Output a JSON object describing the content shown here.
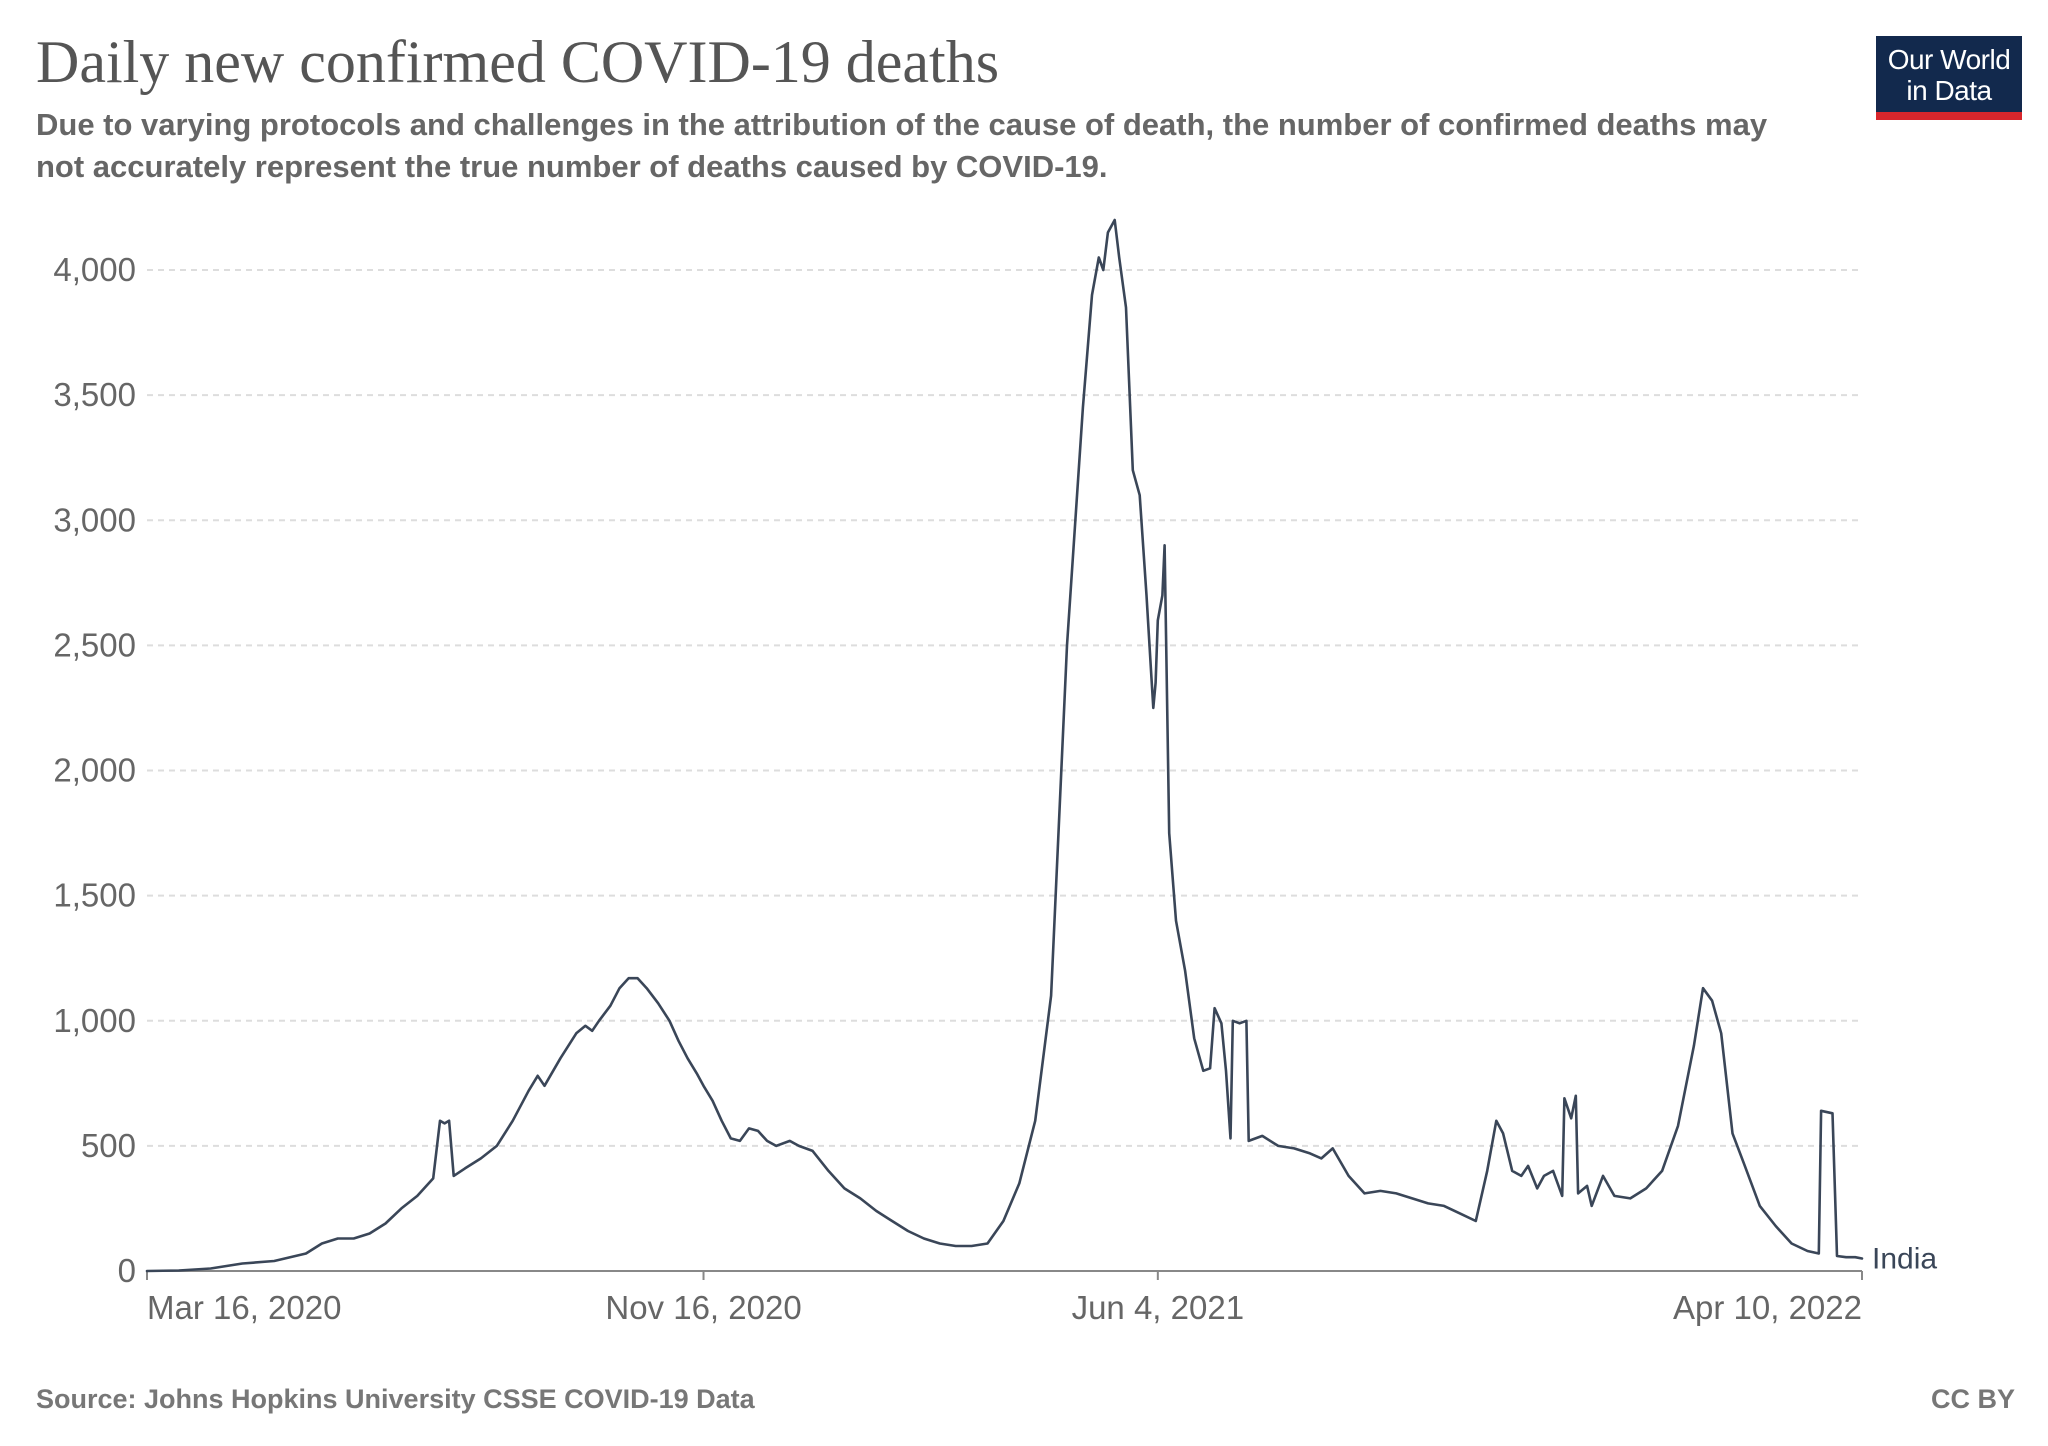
{
  "header": {
    "title": "Daily new confirmed COVID-19 deaths",
    "subtitle": "Due to varying protocols and challenges in the attribution of the cause of death, the number of confirmed deaths may not accurately represent the true number of deaths caused by COVID-19.",
    "logo_line1": "Our World",
    "logo_line2": "in Data"
  },
  "footer": {
    "source": "Source: Johns Hopkins University CSSE COVID-19 Data",
    "license": "CC BY"
  },
  "colors": {
    "line": "#3a4658",
    "grid": "#dddddd",
    "axis": "#888888",
    "tick_label": "#666666",
    "logo_bg": "#12294d",
    "logo_accent": "#d8262c"
  },
  "chart_data": {
    "type": "line",
    "title": "Daily new confirmed COVID-19 deaths",
    "xlabel": "",
    "ylabel": "",
    "x_type": "date",
    "xlim": [
      "2020-03-16",
      "2022-04-10"
    ],
    "ylim": [
      0,
      4000
    ],
    "y_ticks": [
      0,
      500,
      1000,
      1500,
      2000,
      2500,
      3000,
      3500,
      4000
    ],
    "y_tick_labels": [
      "0",
      "500",
      "1,000",
      "1,500",
      "2,000",
      "2,500",
      "3,000",
      "3,500",
      "4,000"
    ],
    "x_ticks": [
      "2020-03-16",
      "2020-11-16",
      "2021-06-04",
      "2022-04-10"
    ],
    "x_tick_labels": [
      "Mar 16, 2020",
      "Nov 16, 2020",
      "Jun 4, 2021",
      "Apr 10, 2022"
    ],
    "grid": true,
    "legend": "end-of-line label",
    "series": [
      {
        "name": "India",
        "color": "#3a4658",
        "points": [
          [
            "2020-03-16",
            0
          ],
          [
            "2020-03-30",
            2
          ],
          [
            "2020-04-13",
            10
          ],
          [
            "2020-04-27",
            30
          ],
          [
            "2020-05-11",
            40
          ],
          [
            "2020-05-25",
            70
          ],
          [
            "2020-06-01",
            110
          ],
          [
            "2020-06-08",
            130
          ],
          [
            "2020-06-15",
            130
          ],
          [
            "2020-06-22",
            150
          ],
          [
            "2020-06-29",
            190
          ],
          [
            "2020-07-06",
            250
          ],
          [
            "2020-07-13",
            300
          ],
          [
            "2020-07-20",
            370
          ],
          [
            "2020-07-23",
            600
          ],
          [
            "2020-07-25",
            590
          ],
          [
            "2020-07-27",
            600
          ],
          [
            "2020-07-29",
            380
          ],
          [
            "2020-08-03",
            410
          ],
          [
            "2020-08-10",
            450
          ],
          [
            "2020-08-17",
            500
          ],
          [
            "2020-08-24",
            600
          ],
          [
            "2020-08-31",
            720
          ],
          [
            "2020-09-04",
            780
          ],
          [
            "2020-09-07",
            740
          ],
          [
            "2020-09-14",
            850
          ],
          [
            "2020-09-21",
            950
          ],
          [
            "2020-09-25",
            980
          ],
          [
            "2020-09-28",
            960
          ],
          [
            "2020-10-01",
            1000
          ],
          [
            "2020-10-06",
            1060
          ],
          [
            "2020-10-10",
            1130
          ],
          [
            "2020-10-14",
            1170
          ],
          [
            "2020-10-18",
            1170
          ],
          [
            "2020-10-22",
            1130
          ],
          [
            "2020-10-27",
            1070
          ],
          [
            "2020-11-01",
            1000
          ],
          [
            "2020-11-05",
            920
          ],
          [
            "2020-11-09",
            850
          ],
          [
            "2020-11-13",
            790
          ],
          [
            "2020-11-16",
            740
          ],
          [
            "2020-11-20",
            680
          ],
          [
            "2020-11-24",
            600
          ],
          [
            "2020-11-28",
            530
          ],
          [
            "2020-12-02",
            520
          ],
          [
            "2020-12-06",
            570
          ],
          [
            "2020-12-10",
            560
          ],
          [
            "2020-12-14",
            520
          ],
          [
            "2020-12-18",
            500
          ],
          [
            "2020-12-24",
            520
          ],
          [
            "2020-12-28",
            500
          ],
          [
            "2021-01-03",
            480
          ],
          [
            "2021-01-10",
            400
          ],
          [
            "2021-01-17",
            330
          ],
          [
            "2021-01-24",
            290
          ],
          [
            "2021-01-31",
            240
          ],
          [
            "2021-02-07",
            200
          ],
          [
            "2021-02-14",
            160
          ],
          [
            "2021-02-21",
            130
          ],
          [
            "2021-02-28",
            110
          ],
          [
            "2021-03-07",
            100
          ],
          [
            "2021-03-14",
            100
          ],
          [
            "2021-03-21",
            110
          ],
          [
            "2021-03-28",
            200
          ],
          [
            "2021-04-04",
            350
          ],
          [
            "2021-04-11",
            600
          ],
          [
            "2021-04-18",
            1100
          ],
          [
            "2021-04-25",
            2500
          ],
          [
            "2021-05-02",
            3450
          ],
          [
            "2021-05-06",
            3900
          ],
          [
            "2021-05-09",
            4050
          ],
          [
            "2021-05-11",
            4000
          ],
          [
            "2021-05-13",
            4150
          ],
          [
            "2021-05-16",
            4200
          ],
          [
            "2021-05-18",
            4050
          ],
          [
            "2021-05-21",
            3850
          ],
          [
            "2021-05-24",
            3200
          ],
          [
            "2021-05-27",
            3100
          ],
          [
            "2021-05-30",
            2700
          ],
          [
            "2021-06-01",
            2400
          ],
          [
            "2021-06-02",
            2250
          ],
          [
            "2021-06-03",
            2350
          ],
          [
            "2021-06-04",
            2600
          ],
          [
            "2021-06-06",
            2700
          ],
          [
            "2021-06-07",
            2900
          ],
          [
            "2021-06-09",
            1750
          ],
          [
            "2021-06-12",
            1400
          ],
          [
            "2021-06-16",
            1200
          ],
          [
            "2021-06-20",
            930
          ],
          [
            "2021-06-24",
            800
          ],
          [
            "2021-06-27",
            810
          ],
          [
            "2021-06-29",
            1050
          ],
          [
            "2021-07-02",
            990
          ],
          [
            "2021-07-04",
            800
          ],
          [
            "2021-07-06",
            530
          ],
          [
            "2021-07-07",
            1000
          ],
          [
            "2021-07-10",
            990
          ],
          [
            "2021-07-13",
            1000
          ],
          [
            "2021-07-14",
            520
          ],
          [
            "2021-07-20",
            540
          ],
          [
            "2021-07-27",
            500
          ],
          [
            "2021-08-03",
            490
          ],
          [
            "2021-08-10",
            470
          ],
          [
            "2021-08-15",
            450
          ],
          [
            "2021-08-20",
            490
          ],
          [
            "2021-08-27",
            380
          ],
          [
            "2021-09-03",
            310
          ],
          [
            "2021-09-10",
            320
          ],
          [
            "2021-09-17",
            310
          ],
          [
            "2021-09-24",
            290
          ],
          [
            "2021-10-01",
            270
          ],
          [
            "2021-10-08",
            260
          ],
          [
            "2021-10-15",
            230
          ],
          [
            "2021-10-22",
            200
          ],
          [
            "2021-10-27",
            400
          ],
          [
            "2021-10-31",
            600
          ],
          [
            "2021-11-03",
            550
          ],
          [
            "2021-11-07",
            400
          ],
          [
            "2021-11-11",
            380
          ],
          [
            "2021-11-14",
            420
          ],
          [
            "2021-11-18",
            330
          ],
          [
            "2021-11-21",
            380
          ],
          [
            "2021-11-25",
            400
          ],
          [
            "2021-11-29",
            300
          ],
          [
            "2021-11-30",
            690
          ],
          [
            "2021-12-03",
            610
          ],
          [
            "2021-12-05",
            700
          ],
          [
            "2021-12-06",
            310
          ],
          [
            "2021-12-10",
            340
          ],
          [
            "2021-12-12",
            260
          ],
          [
            "2021-12-17",
            380
          ],
          [
            "2021-12-22",
            300
          ],
          [
            "2021-12-29",
            290
          ],
          [
            "2022-01-05",
            330
          ],
          [
            "2022-01-12",
            400
          ],
          [
            "2022-01-19",
            580
          ],
          [
            "2022-01-26",
            900
          ],
          [
            "2022-01-30",
            1130
          ],
          [
            "2022-02-03",
            1080
          ],
          [
            "2022-02-07",
            950
          ],
          [
            "2022-02-12",
            550
          ],
          [
            "2022-02-17",
            430
          ],
          [
            "2022-02-24",
            260
          ],
          [
            "2022-03-03",
            180
          ],
          [
            "2022-03-10",
            110
          ],
          [
            "2022-03-17",
            80
          ],
          [
            "2022-03-22",
            70
          ],
          [
            "2022-03-23",
            640
          ],
          [
            "2022-03-28",
            630
          ],
          [
            "2022-03-30",
            60
          ],
          [
            "2022-04-03",
            55
          ],
          [
            "2022-04-07",
            55
          ],
          [
            "2022-04-10",
            50
          ]
        ]
      }
    ]
  }
}
